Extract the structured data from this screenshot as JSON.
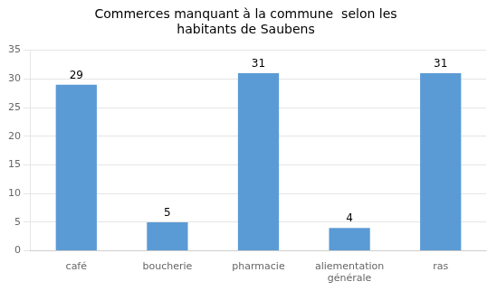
{
  "chart_data": {
    "type": "bar",
    "title": "Commerces manquant à la commune  selon les\nhabitants de Saubens",
    "categories": [
      "café",
      "boucherie",
      "pharmacie",
      "aliementation\ngénérale",
      "ras"
    ],
    "values": [
      29,
      5,
      31,
      4,
      31
    ],
    "color": "#5B9BD5",
    "ylim": [
      0,
      35
    ],
    "yticks": [
      0,
      5,
      10,
      15,
      20,
      25,
      30,
      35
    ],
    "grid": true,
    "data_labels": true
  }
}
